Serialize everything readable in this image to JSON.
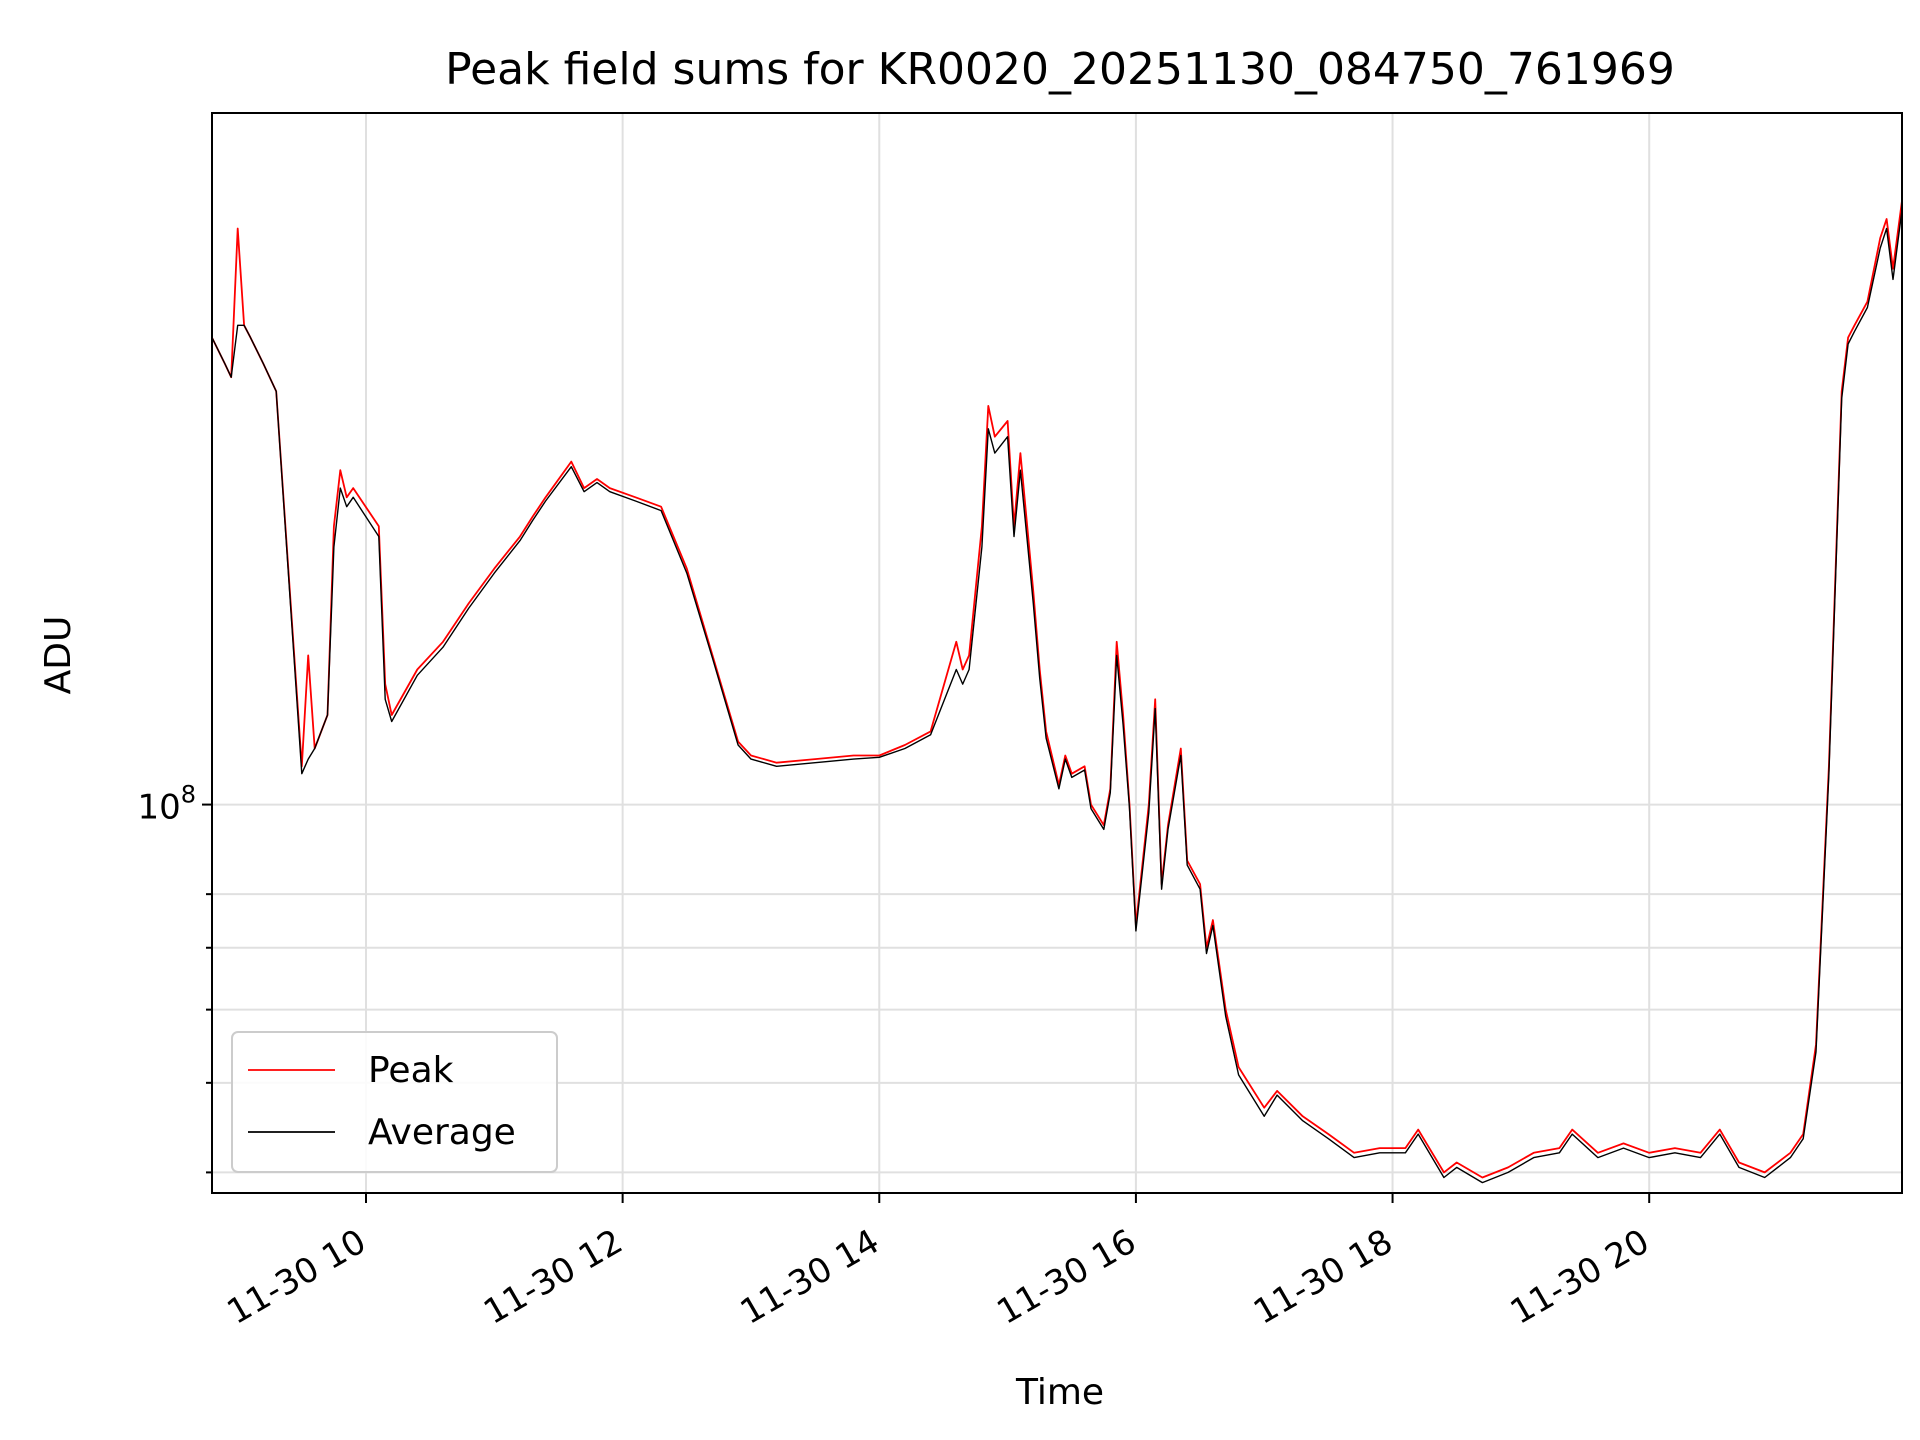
{
  "chart_data": {
    "type": "line",
    "title": "Peak field sums for KR0020_20251130_084750_761969",
    "xlabel": "Time",
    "ylabel": "ADU",
    "yscale": "log",
    "xlim": [
      8.8,
      21.97
    ],
    "ylim": [
      38000000,
      560000000
    ],
    "y_major_tick": {
      "value": 100000000,
      "base": "10",
      "exponent": "8"
    },
    "y_minor_ticks": [
      40000000,
      50000000,
      60000000,
      70000000,
      80000000
    ],
    "grid": true,
    "legend_position": "lower-left",
    "x_ticks": [
      {
        "value": 10,
        "label": "11-30 10"
      },
      {
        "value": 12,
        "label": "11-30 12"
      },
      {
        "value": 14,
        "label": "11-30 14"
      },
      {
        "value": 16,
        "label": "11-30 16"
      },
      {
        "value": 18,
        "label": "11-30 18"
      },
      {
        "value": 20,
        "label": "11-30 20"
      }
    ],
    "series": [
      {
        "name": "Peak",
        "color": "#ff0000",
        "x": [
          8.8,
          8.9,
          8.95,
          9.0,
          9.05,
          9.1,
          9.2,
          9.3,
          9.5,
          9.55,
          9.6,
          9.7,
          9.75,
          9.8,
          9.85,
          9.9,
          10.1,
          10.15,
          10.2,
          10.4,
          10.6,
          10.8,
          11.0,
          11.2,
          11.3,
          11.4,
          11.6,
          11.7,
          11.8,
          11.9,
          12.1,
          12.3,
          12.5,
          12.7,
          12.9,
          13.0,
          13.2,
          13.5,
          13.8,
          14.0,
          14.2,
          14.4,
          14.6,
          14.65,
          14.7,
          14.8,
          14.85,
          14.9,
          15.0,
          15.05,
          15.1,
          15.2,
          15.25,
          15.3,
          15.4,
          15.45,
          15.5,
          15.6,
          15.65,
          15.75,
          15.8,
          15.85,
          15.9,
          15.95,
          16.0,
          16.1,
          16.15,
          16.2,
          16.25,
          16.35,
          16.4,
          16.5,
          16.55,
          16.6,
          16.7,
          16.8,
          17.0,
          17.1,
          17.3,
          17.5,
          17.7,
          17.9,
          18.1,
          18.2,
          18.4,
          18.5,
          18.7,
          18.9,
          19.1,
          19.3,
          19.4,
          19.6,
          19.8,
          20.0,
          20.2,
          20.4,
          20.55,
          20.7,
          20.9,
          21.1,
          21.2,
          21.3,
          21.4,
          21.5,
          21.55,
          21.6,
          21.7,
          21.8,
          21.85,
          21.9,
          21.97
        ],
        "y": [
          320000000,
          300000000,
          290000000,
          420000000,
          330000000,
          320000000,
          300000000,
          280000000,
          110000000,
          145000000,
          115000000,
          125000000,
          200000000,
          230000000,
          215000000,
          220000000,
          200000000,
          135000000,
          125000000,
          140000000,
          150000000,
          165000000,
          180000000,
          195000000,
          205000000,
          215000000,
          235000000,
          220000000,
          225000000,
          220000000,
          215000000,
          210000000,
          180000000,
          145000000,
          117000000,
          113000000,
          111000000,
          112000000,
          113000000,
          113000000,
          116000000,
          120000000,
          150000000,
          140000000,
          145000000,
          200000000,
          270000000,
          250000000,
          260000000,
          200000000,
          240000000,
          170000000,
          140000000,
          120000000,
          105000000,
          113000000,
          108000000,
          110000000,
          100000000,
          95000000,
          104000000,
          150000000,
          125000000,
          100000000,
          74000000,
          100000000,
          130000000,
          82000000,
          95000000,
          115000000,
          87000000,
          82000000,
          70000000,
          75000000,
          60000000,
          52000000,
          47000000,
          49000000,
          46000000,
          44000000,
          42000000,
          42500000,
          42500000,
          44500000,
          40000000,
          41000000,
          39500000,
          40500000,
          42000000,
          42500000,
          44500000,
          42000000,
          43000000,
          42000000,
          42500000,
          42000000,
          44500000,
          41000000,
          40000000,
          42000000,
          44000000,
          55000000,
          110000000,
          280000000,
          320000000,
          330000000,
          350000000,
          410000000,
          430000000,
          380000000,
          450000000
        ]
      },
      {
        "name": "Average",
        "color": "#000000",
        "x": [
          8.8,
          8.9,
          8.95,
          9.0,
          9.05,
          9.1,
          9.2,
          9.3,
          9.5,
          9.55,
          9.6,
          9.7,
          9.75,
          9.8,
          9.85,
          9.9,
          10.1,
          10.15,
          10.2,
          10.4,
          10.6,
          10.8,
          11.0,
          11.2,
          11.3,
          11.4,
          11.6,
          11.7,
          11.8,
          11.9,
          12.1,
          12.3,
          12.5,
          12.7,
          12.9,
          13.0,
          13.2,
          13.5,
          13.8,
          14.0,
          14.2,
          14.4,
          14.6,
          14.65,
          14.7,
          14.8,
          14.85,
          14.9,
          15.0,
          15.05,
          15.1,
          15.2,
          15.25,
          15.3,
          15.4,
          15.45,
          15.5,
          15.6,
          15.65,
          15.75,
          15.8,
          15.85,
          15.9,
          15.95,
          16.0,
          16.1,
          16.15,
          16.2,
          16.25,
          16.35,
          16.4,
          16.5,
          16.55,
          16.6,
          16.7,
          16.8,
          17.0,
          17.1,
          17.3,
          17.5,
          17.7,
          17.9,
          18.1,
          18.2,
          18.4,
          18.5,
          18.7,
          18.9,
          19.1,
          19.3,
          19.4,
          19.6,
          19.8,
          20.0,
          20.2,
          20.4,
          20.55,
          20.7,
          20.9,
          21.1,
          21.2,
          21.3,
          21.4,
          21.5,
          21.55,
          21.6,
          21.7,
          21.8,
          21.85,
          21.9,
          21.97
        ],
        "y": [
          320000000,
          300000000,
          290000000,
          330000000,
          330000000,
          320000000,
          300000000,
          280000000,
          108000000,
          112000000,
          115000000,
          125000000,
          190000000,
          220000000,
          210000000,
          215000000,
          195000000,
          130000000,
          123000000,
          138000000,
          148000000,
          163000000,
          178000000,
          193000000,
          203000000,
          213000000,
          232000000,
          218000000,
          223000000,
          218000000,
          213000000,
          208000000,
          178000000,
          144000000,
          116000000,
          112000000,
          110000000,
          111000000,
          112000000,
          112500000,
          115000000,
          119000000,
          140000000,
          135000000,
          140000000,
          190000000,
          255000000,
          240000000,
          250000000,
          195000000,
          230000000,
          165000000,
          137000000,
          118000000,
          104000000,
          112000000,
          107000000,
          109000000,
          99000000,
          94000000,
          103000000,
          145000000,
          122000000,
          99000000,
          73000000,
          98000000,
          127000000,
          81000000,
          94000000,
          113000000,
          86000000,
          81000000,
          69000000,
          74000000,
          59000000,
          51000000,
          46000000,
          48500000,
          45500000,
          43500000,
          41500000,
          42000000,
          42000000,
          44000000,
          39500000,
          40500000,
          39000000,
          40000000,
          41500000,
          42000000,
          44000000,
          41500000,
          42500000,
          41500000,
          42000000,
          41500000,
          44000000,
          40500000,
          39500000,
          41500000,
          43500000,
          54000000,
          108000000,
          275000000,
          315000000,
          325000000,
          345000000,
          400000000,
          420000000,
          370000000,
          440000000
        ]
      }
    ]
  }
}
